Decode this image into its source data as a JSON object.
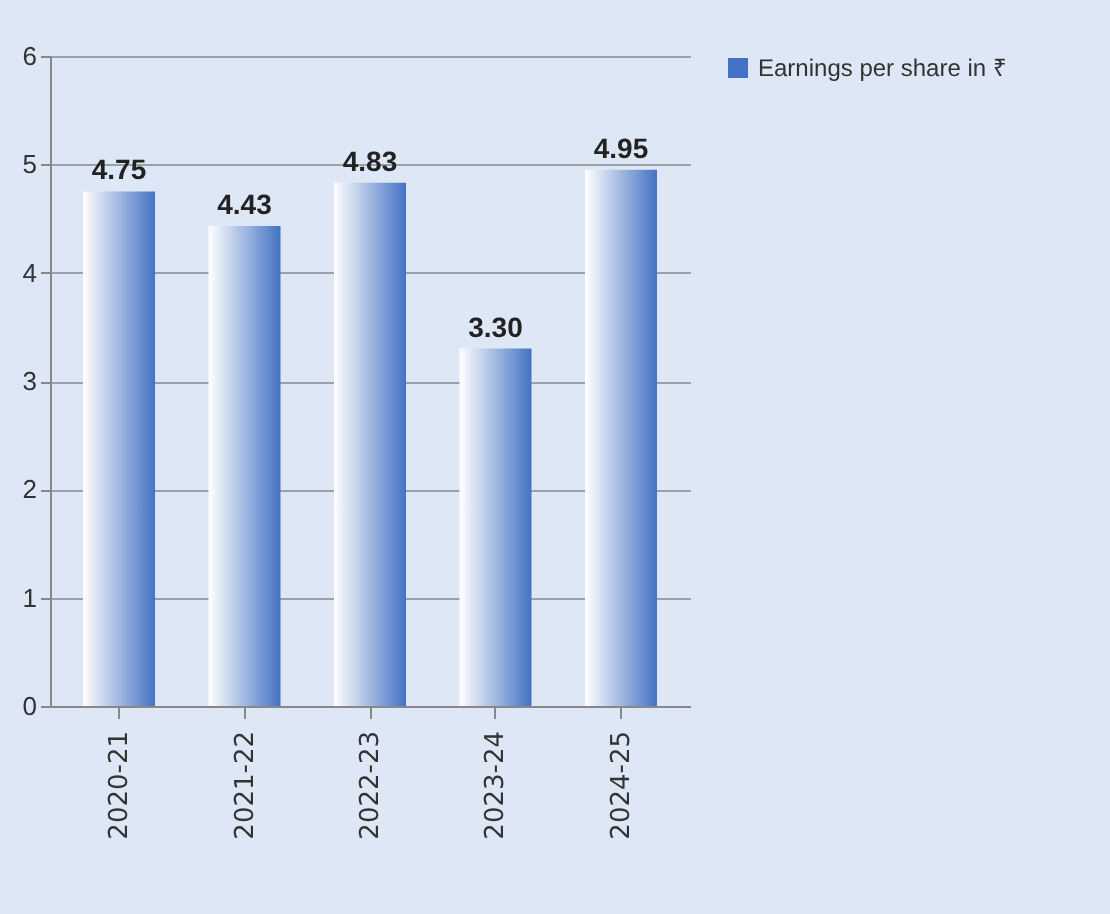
{
  "chart_data": {
    "type": "bar",
    "categories": [
      "2020-21",
      "2021-22",
      "2022-23",
      "2023-24",
      "2024-25"
    ],
    "series": [
      {
        "name": "Earnings per share in ₹",
        "color": "#4472c4",
        "values": [
          4.75,
          4.43,
          4.83,
          3.3,
          4.95
        ],
        "value_labels": [
          "4.75",
          "4.43",
          "4.83",
          "3.30",
          "4.95"
        ]
      }
    ],
    "ylim": [
      0,
      6
    ],
    "yticks": [
      0,
      1,
      2,
      3,
      4,
      5,
      6
    ],
    "grid": "y",
    "legend": "right"
  }
}
